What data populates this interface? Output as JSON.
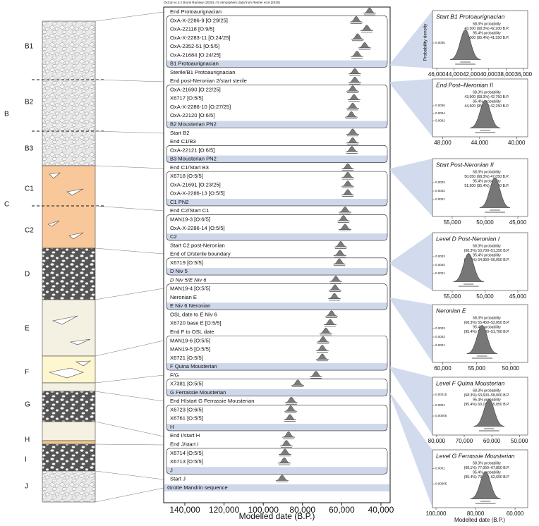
{
  "strata_labels": [
    "B1",
    "B",
    "B2",
    "B3",
    "C1",
    "C",
    "C2",
    "D",
    "E",
    "F",
    "G",
    "H",
    "I",
    "J"
  ],
  "chart_data": [
    {
      "type": "oxcal",
      "annotation": "OxCal v4.4.2 Bronk Ramsey (2020); r:5 Atmospheric data from Reimer et al (2020)",
      "xlabel": "Modelled date (B.P.)",
      "xlim": [
        150800,
        35300
      ],
      "xticks": [
        {
          "value": 140000,
          "label": "140,000"
        },
        {
          "value": 120000,
          "label": "120,000"
        },
        {
          "value": 100000,
          "label": "100,000"
        },
        {
          "value": 80000,
          "label": "80,000"
        },
        {
          "value": 60000,
          "label": "60,000"
        },
        {
          "value": 40000,
          "label": "40,000"
        }
      ],
      "sequence_name": "Grotte Mandrin sequence",
      "sequence": [
        {
          "label": "End Protoaurignacian",
          "value": 45800
        },
        {
          "phase": "B1 Protoaurignacian",
          "rows": [
            {
              "label": "OxA-X-2286-9 [O:29/25]",
              "value": 52600
            },
            {
              "label": "OxA-22118 [O:9/5]",
              "value": 47200
            },
            {
              "label": "OxA-X-2283-11 [O:24/25]",
              "value": 51900
            },
            {
              "label": "OxA-2352-51 [O:5/5]",
              "value": 48300
            },
            {
              "label": "OxA-21684 [O:24/25]",
              "value": 52200
            }
          ]
        },
        {
          "label": "Sterile/B1 Protoaurignacian",
          "value": 53300
        },
        {
          "label": "End post-Neronian 2/start sterile",
          "value": 53300
        },
        {
          "phase": "B2 Mousterian PN2",
          "rows": [
            {
              "label": "OxA-21690 [O:22/25]",
              "value": 54400
            },
            {
              "label": "X6717 [O:5/5]",
              "value": 53700
            },
            {
              "label": "OxA-X-2286-10 [O:27/25]",
              "value": 54400
            },
            {
              "label": "OxA-22120 [O:6/5]",
              "value": 55100
            }
          ]
        },
        {
          "label": "Start B2",
          "value": 54400
        },
        {
          "label": "End C1/B3",
          "value": 54400
        },
        {
          "phase": "B3 Mousterian PN2",
          "rows": [
            {
              "label": "OxA-22121 [O:6/5]",
              "value": 54800
            }
          ]
        },
        {
          "label": "End C1/Start B3",
          "value": 56900
        },
        {
          "phase": "C1 PN2",
          "rows": [
            {
              "label": "X6718 [O:5/5]",
              "value": 56900
            },
            {
              "label": "OxA-21691 [O:23/25]",
              "value": 56900
            },
            {
              "label": "OxA-X-2286-13 [O:5/5]",
              "value": 56900
            }
          ]
        },
        {
          "label": "End C2/Start C1",
          "value": 58300
        },
        {
          "phase": "C2",
          "rows": [
            {
              "label": "MAN19-3 [O:6/5]",
              "value": 59100
            },
            {
              "label": "OxA-X-2286-14 [O:5/5]",
              "value": 58300
            }
          ]
        },
        {
          "label": "Start C2 post-Neronian",
          "value": 60500
        },
        {
          "label": "End of D/sterile boundary",
          "value": 60900
        },
        {
          "phase": "D Niv 5",
          "rows": [
            {
              "label": "X6719 [O:5/5]",
              "value": 61200
            }
          ]
        },
        {
          "label": "D Niv 5/E Niv 6",
          "value": 63000,
          "italic": true
        },
        {
          "phase": "E Niv 6 Neronian",
          "rows": [
            {
              "label": "MAN19-4 [O:5/5]",
              "value": 63400
            },
            {
              "label": "Neronian E",
              "value": 63700
            }
          ]
        },
        {
          "label": "OSL date to E Niv 6",
          "value": 65200
        },
        {
          "label": "X6720 base E [O:5/5]",
          "value": 65900
        },
        {
          "label": "End F to OSL date",
          "value": 68100
        },
        {
          "phase": "F Quina Mousterian",
          "rows": [
            {
              "label": "MAN19-6 [O:5/5]",
              "value": 69500
            },
            {
              "label": "MAN19-5 [O:5/5]",
              "value": 69900
            },
            {
              "label": "X6721 [O:5/5]",
              "value": 69900
            }
          ]
        },
        {
          "label": "F/G",
          "value": 73100
        },
        {
          "phase": "G Ferrassie Mousterian",
          "rows": [
            {
              "label": "X7381 [O:5/5]",
              "value": 82400
            }
          ]
        },
        {
          "label": "End H/start G Ferrassie Mousterian",
          "value": 85700
        },
        {
          "phase": "H",
          "rows": [
            {
              "label": "X6723 [O:6/5]",
              "value": 86000
            },
            {
              "label": "X6761 [O:5/5]",
              "value": 86400
            }
          ]
        },
        {
          "label": "End I/start H",
          "value": 87100
        },
        {
          "label": "End J/start I",
          "value": 88200
        },
        {
          "phase": "J",
          "rows": [
            {
              "label": "X6714 [O:5/5]",
              "value": 88900
            },
            {
              "label": "X6713 [O:5/5]",
              "value": 89300
            }
          ]
        },
        {
          "label": "Start J",
          "value": 90400
        }
      ]
    },
    {
      "type": "density",
      "title": "Start B1 Protoaurignacian",
      "ylabel": "Probability density",
      "lines": [
        "68.3% probability",
        "43,300 (68.3%) 42,200 B.P.",
        "95.4% probability",
        "44,000 (95.4%) 41,550 B.P."
      ],
      "mode": 42700,
      "peak": 0.0009,
      "xlim": [
        46500,
        35500
      ],
      "ylim": [
        0,
        0.001
      ],
      "yticks": [
        0.0005
      ],
      "xticks": [
        {
          "value": 46000,
          "label": "46,000"
        },
        {
          "value": 44000,
          "label": "44,000"
        },
        {
          "value": 42000,
          "label": "42,000"
        },
        {
          "value": 40000,
          "label": "40,000"
        },
        {
          "value": 38000,
          "label": "38,000"
        },
        {
          "value": 36000,
          "label": "36,000"
        }
      ]
    },
    {
      "type": "density",
      "title": "End Post–Neronian II",
      "lines": [
        "68.3% probability",
        "43,900 (68.3%) 42,750 B.P.",
        "95.4% probability",
        "44,500 (95.4%) 42,250 B.P."
      ],
      "mode": 43400,
      "peak": 0.00075,
      "xlim": [
        49100,
        38800
      ],
      "ylim": [
        0,
        0.0009
      ],
      "yticks": [
        0.0002,
        0.0004,
        0.0006
      ],
      "xticks": [
        {
          "value": 48000,
          "label": "48,000"
        },
        {
          "value": 44000,
          "label": "44,000"
        },
        {
          "value": 40000,
          "label": "40,000"
        }
      ]
    },
    {
      "type": "density",
      "title": "Start Post-Neronian II",
      "lines": [
        "68.3% probability",
        "50,050 (68.3%) 47,050 B.P.",
        "95.4% probability",
        "51,900 (95.4%) 46,050 B.P."
      ],
      "mode": 48500,
      "peak": 0.00036,
      "xlim": [
        58000,
        43500
      ],
      "ylim": [
        0,
        0.0004
      ],
      "yticks": [
        0.0001,
        0.0002,
        0.0003
      ],
      "xticks": [
        {
          "value": 55000,
          "label": "55,000"
        },
        {
          "value": 50000,
          "label": "50,000"
        },
        {
          "value": 45000,
          "label": "45,000"
        }
      ]
    },
    {
      "type": "density",
      "title": "Level D Post-Neronian I",
      "lines": [
        "68.3% probability",
        "(68.3%) 53,700–51,250 B.P.",
        "95.4% probability",
        "(95.4%) 54,950–50,050 B.P."
      ],
      "mode": 52500,
      "peak": 0.00034,
      "xlim": [
        58000,
        43500
      ],
      "ylim": [
        0,
        0.0004
      ],
      "yticks": [
        0.0001,
        0.0002,
        0.0003
      ],
      "xticks": [
        {
          "value": 55000,
          "label": "55,000"
        },
        {
          "value": 50000,
          "label": "50,000"
        },
        {
          "value": 45000,
          "label": "45,000"
        }
      ]
    },
    {
      "type": "density",
      "title": "Neronian E",
      "lines": [
        "68.3% probability",
        "(68.3%) 55,450–52,850 B.P.",
        "95.4% probability",
        "(95.4%) 56,800–51,700 B.P."
      ],
      "mode": 54200,
      "peak": 0.00034,
      "xlim": [
        61500,
        47500
      ],
      "ylim": [
        0,
        0.0004
      ],
      "yticks": [
        0.0001,
        0.0002,
        0.0003
      ],
      "xticks": [
        {
          "value": 60000,
          "label": "60,000"
        },
        {
          "value": 55000,
          "label": "55,000"
        },
        {
          "value": 50000,
          "label": "50,000"
        }
      ]
    },
    {
      "type": "density",
      "title": "Level F Quina Mousterian",
      "lines": [
        "68.3% probability",
        "(68.3%) 63,600–58,000 B.P.",
        "95.4% probability",
        "(95.4%) 69,150–55,850 B.P."
      ],
      "mode": 61000,
      "peak": 0.00013,
      "xlim": [
        81500,
        47000
      ],
      "ylim": [
        0,
        0.00016
      ],
      "yticks": [
        5e-05,
        0.0001,
        0.00015
      ],
      "xticks": [
        {
          "value": 80000,
          "label": "80,000"
        },
        {
          "value": 70000,
          "label": "70,000"
        },
        {
          "value": 60000,
          "label": "60,000"
        },
        {
          "value": 50000,
          "label": "50,000"
        }
      ]
    },
    {
      "type": "density",
      "title": "Level G Ferrassie Mousterian",
      "xlabel": "Modelled date (B.P.)",
      "lines": [
        "68.3% probability",
        "(68.1%) 77,050–67,850 B.P.",
        "95.4% probability",
        "(95.4%) 79,000–62,650 B.P."
      ],
      "mode": 75000,
      "peak": 9e-05,
      "xlim": [
        101800,
        53600
      ],
      "ylim": [
        0,
        0.00011
      ],
      "yticks": [
        5e-05,
        0.0001
      ],
      "xticks": [
        {
          "value": 100000,
          "label": "100,000"
        },
        {
          "value": 80000,
          "label": "80,000"
        },
        {
          "value": 60000,
          "label": "60,000"
        }
      ]
    }
  ]
}
